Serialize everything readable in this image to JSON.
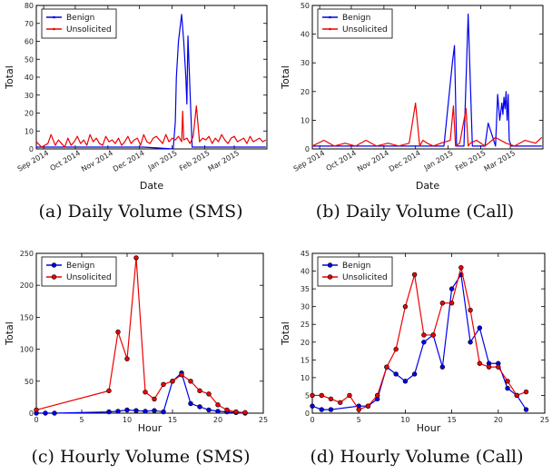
{
  "chart_data": [
    {
      "id": "a",
      "type": "line",
      "caption": "(a) Daily Volume (SMS)",
      "xlabel": "Date",
      "ylabel": "Total",
      "x_is_date": true,
      "xlim": [
        "2014-08-25",
        "2015-04-01"
      ],
      "ylim": [
        0,
        80
      ],
      "yticks": [
        0,
        10,
        20,
        30,
        40,
        50,
        60,
        70,
        80
      ],
      "xticks": [
        {
          "label": "Sep 2014",
          "date": "2014-09-01"
        },
        {
          "label": "Oct 2014",
          "date": "2014-10-01"
        },
        {
          "label": "Nov 2014",
          "date": "2014-11-01"
        },
        {
          "label": "Dec 2014",
          "date": "2014-12-01"
        },
        {
          "label": "Jan 2015",
          "date": "2015-01-01"
        },
        {
          "label": "Feb 2015",
          "date": "2015-02-01"
        },
        {
          "label": "Mar 2015",
          "date": "2015-03-01"
        }
      ],
      "legend": {
        "position": "top-left"
      },
      "series": [
        {
          "name": "Benign",
          "color": "#0000ee",
          "marker": false,
          "x": [
            "2014-08-25",
            "2014-12-05",
            "2015-01-02",
            "2015-01-04",
            "2015-01-05",
            "2015-01-07",
            "2015-01-10",
            "2015-01-12",
            "2015-01-14",
            "2015-01-15",
            "2015-01-16",
            "2015-01-20",
            "2015-02-05",
            "2015-03-25",
            "2015-03-31"
          ],
          "y": [
            1,
            1,
            0,
            15,
            40,
            60,
            75,
            60,
            40,
            25,
            63,
            1,
            1,
            1,
            1
          ]
        },
        {
          "name": "Unsolicited",
          "color": "#ee0000",
          "marker": false,
          "x": [
            "2014-08-25",
            "2014-08-30",
            "2014-09-05",
            "2014-09-08",
            "2014-09-12",
            "2014-09-15",
            "2014-09-18",
            "2014-09-21",
            "2014-09-24",
            "2014-09-27",
            "2014-09-30",
            "2014-10-03",
            "2014-10-06",
            "2014-10-09",
            "2014-10-12",
            "2014-10-15",
            "2014-10-18",
            "2014-10-21",
            "2014-10-24",
            "2014-10-27",
            "2014-10-30",
            "2014-11-02",
            "2014-11-05",
            "2014-11-08",
            "2014-11-11",
            "2014-11-14",
            "2014-11-17",
            "2014-11-20",
            "2014-11-23",
            "2014-11-26",
            "2014-11-29",
            "2014-12-02",
            "2014-12-05",
            "2014-12-08",
            "2014-12-11",
            "2014-12-14",
            "2014-12-17",
            "2014-12-20",
            "2014-12-23",
            "2014-12-26",
            "2014-12-29",
            "2015-01-01",
            "2015-01-04",
            "2015-01-07",
            "2015-01-10",
            "2015-01-11",
            "2015-01-12",
            "2015-01-15",
            "2015-01-18",
            "2015-01-21",
            "2015-01-24",
            "2015-01-27",
            "2015-01-30",
            "2015-02-02",
            "2015-02-05",
            "2015-02-08",
            "2015-02-11",
            "2015-02-14",
            "2015-02-17",
            "2015-02-20",
            "2015-02-23",
            "2015-02-26",
            "2015-03-01",
            "2015-03-04",
            "2015-03-07",
            "2015-03-10",
            "2015-03-13",
            "2015-03-16",
            "2015-03-19",
            "2015-03-22",
            "2015-03-25",
            "2015-03-28",
            "2015-03-31"
          ],
          "y": [
            4,
            1,
            3,
            8,
            2,
            5,
            3,
            1,
            6,
            2,
            4,
            7,
            3,
            5,
            2,
            8,
            4,
            6,
            3,
            2,
            7,
            4,
            5,
            3,
            6,
            2,
            4,
            7,
            3,
            5,
            6,
            2,
            8,
            4,
            3,
            6,
            7,
            5,
            3,
            8,
            4,
            6,
            5,
            7,
            4,
            21,
            5,
            6,
            3,
            7,
            24,
            4,
            6,
            5,
            7,
            3,
            6,
            4,
            8,
            5,
            3,
            6,
            7,
            4,
            5,
            6,
            3,
            7,
            4,
            5,
            6,
            4,
            5
          ]
        }
      ]
    },
    {
      "id": "b",
      "type": "line",
      "caption": "(b) Daily Volume (Call)",
      "xlabel": "Date",
      "ylabel": "Total",
      "x_is_date": true,
      "xlim": [
        "2014-08-25",
        "2015-04-01"
      ],
      "ylim": [
        0,
        50
      ],
      "yticks": [
        0,
        10,
        20,
        30,
        40,
        50
      ],
      "xticks": [
        {
          "label": "Sep 2014",
          "date": "2014-09-01"
        },
        {
          "label": "Oct 2014",
          "date": "2014-10-01"
        },
        {
          "label": "Nov 2014",
          "date": "2014-11-01"
        },
        {
          "label": "Dec 2014",
          "date": "2014-12-01"
        },
        {
          "label": "Jan 2015",
          "date": "2015-01-01"
        },
        {
          "label": "Feb 2015",
          "date": "2015-02-01"
        },
        {
          "label": "Mar 2015",
          "date": "2015-03-01"
        }
      ],
      "legend": {
        "position": "top-left"
      },
      "series": [
        {
          "name": "Benign",
          "color": "#0000ee",
          "marker": false,
          "x": [
            "2014-08-25",
            "2014-12-15",
            "2014-12-28",
            "2015-01-05",
            "2015-01-07",
            "2015-01-09",
            "2015-01-14",
            "2015-01-16",
            "2015-01-20",
            "2015-01-24",
            "2015-01-26",
            "2015-02-05",
            "2015-02-08",
            "2015-02-15",
            "2015-02-17",
            "2015-02-19",
            "2015-02-21",
            "2015-02-22",
            "2015-02-23",
            "2015-02-24",
            "2015-02-25",
            "2015-02-26",
            "2015-02-27",
            "2015-02-28",
            "2015-03-02",
            "2015-03-10",
            "2015-03-31"
          ],
          "y": [
            1,
            1,
            1,
            30,
            36,
            1,
            1,
            1,
            47,
            1,
            1,
            1,
            9,
            1,
            19,
            10,
            16,
            12,
            18,
            14,
            20,
            10,
            19,
            3,
            1,
            1,
            1
          ]
        },
        {
          "name": "Unsolicited",
          "color": "#ee0000",
          "marker": false,
          "x": [
            "2014-08-25",
            "2014-09-05",
            "2014-09-15",
            "2014-09-25",
            "2014-10-05",
            "2014-10-15",
            "2014-10-25",
            "2014-11-05",
            "2014-11-15",
            "2014-11-25",
            "2014-12-01",
            "2014-12-05",
            "2014-12-08",
            "2014-12-12",
            "2014-12-18",
            "2014-12-25",
            "2015-01-03",
            "2015-01-06",
            "2015-01-08",
            "2015-01-12",
            "2015-01-18",
            "2015-01-20",
            "2015-01-22",
            "2015-01-28",
            "2015-02-05",
            "2015-02-15",
            "2015-02-25",
            "2015-03-05",
            "2015-03-15",
            "2015-03-25",
            "2015-03-31"
          ],
          "y": [
            1,
            3,
            1,
            2,
            1,
            3,
            1,
            2,
            1,
            2,
            16,
            1,
            3,
            2,
            1,
            2,
            3,
            15,
            1,
            2,
            14,
            1,
            2,
            3,
            1,
            4,
            2,
            1,
            3,
            2,
            4
          ]
        }
      ]
    },
    {
      "id": "c",
      "type": "line",
      "caption": "(c) Hourly Volume (SMS)",
      "xlabel": "Hour",
      "ylabel": "Total",
      "x_is_date": false,
      "xlim": [
        0,
        25
      ],
      "ylim": [
        0,
        250
      ],
      "xticks": [
        0,
        5,
        10,
        15,
        20,
        25
      ],
      "yticks": [
        0,
        50,
        100,
        150,
        200,
        250
      ],
      "legend": {
        "position": "top-left"
      },
      "series": [
        {
          "name": "Benign",
          "color": "#0000ee",
          "marker": true,
          "x": [
            0,
            1,
            2,
            8,
            9,
            10,
            11,
            12,
            13,
            14,
            15,
            16,
            17,
            18,
            19,
            20,
            21,
            22,
            23
          ],
          "y": [
            0,
            0,
            0,
            2,
            3,
            5,
            4,
            3,
            4,
            2,
            50,
            63,
            15,
            10,
            5,
            3,
            2,
            1,
            0
          ]
        },
        {
          "name": "Unsolicited",
          "color": "#ee0000",
          "marker": true,
          "x": [
            0,
            8,
            9,
            10,
            11,
            12,
            13,
            14,
            15,
            16,
            17,
            18,
            19,
            20,
            21,
            22,
            23
          ],
          "y": [
            5,
            35,
            127,
            85,
            243,
            33,
            22,
            45,
            50,
            60,
            50,
            35,
            30,
            13,
            5,
            2,
            1
          ]
        }
      ]
    },
    {
      "id": "d",
      "type": "line",
      "caption": "(d) Hourly Volume (Call)",
      "xlabel": "Hour",
      "ylabel": "Total",
      "x_is_date": false,
      "xlim": [
        0,
        25
      ],
      "ylim": [
        0,
        45
      ],
      "xticks": [
        0,
        5,
        10,
        15,
        20,
        25
      ],
      "yticks": [
        0,
        5,
        10,
        15,
        20,
        25,
        30,
        35,
        40,
        45
      ],
      "legend": {
        "position": "top-left"
      },
      "series": [
        {
          "name": "Benign",
          "color": "#0000ee",
          "marker": true,
          "x": [
            0,
            1,
            2,
            5,
            6,
            7,
            8,
            9,
            10,
            11,
            12,
            13,
            14,
            15,
            16,
            17,
            18,
            19,
            20,
            21,
            22,
            23
          ],
          "y": [
            2,
            1,
            1,
            2,
            2,
            4,
            13,
            11,
            9,
            11,
            20,
            22,
            13,
            35,
            39,
            20,
            24,
            14,
            14,
            7,
            5,
            1
          ]
        },
        {
          "name": "Unsolicited",
          "color": "#ee0000",
          "marker": true,
          "x": [
            0,
            1,
            2,
            3,
            4,
            5,
            6,
            7,
            8,
            9,
            10,
            11,
            12,
            13,
            14,
            15,
            16,
            17,
            18,
            19,
            20,
            21,
            22,
            23
          ],
          "y": [
            5,
            5,
            4,
            3,
            5,
            1,
            2,
            5,
            13,
            18,
            30,
            39,
            22,
            22,
            31,
            31,
            41,
            29,
            14,
            13,
            13,
            9,
            5,
            6
          ]
        }
      ]
    }
  ]
}
